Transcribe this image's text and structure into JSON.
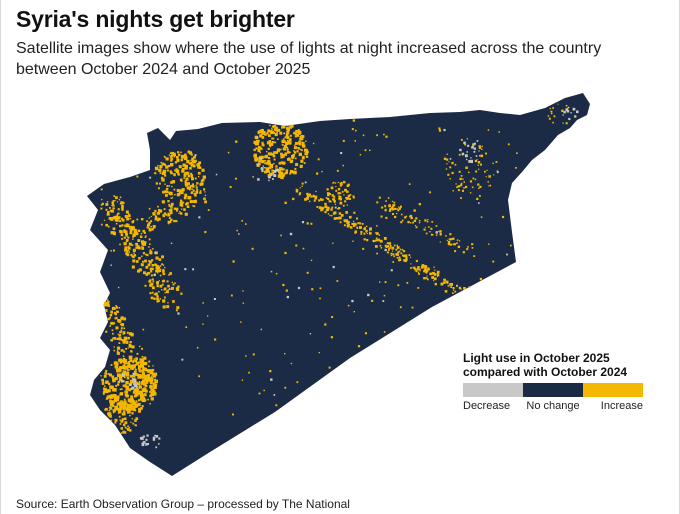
{
  "header": {
    "title": "Syria's nights get brighter",
    "subtitle": "Satellite images show where the use of lights at night increased across the country between October 2024 and October 2025"
  },
  "legend": {
    "title_line1": "Light use in October 2025",
    "title_line2": "compared with October 2024",
    "items": [
      {
        "label": "Decrease",
        "color": "#c8c8c8"
      },
      {
        "label": "No change",
        "color": "#1b2b45"
      },
      {
        "label": "Increase",
        "color": "#f5b800"
      }
    ]
  },
  "source": "Source: Earth Observation Group – processed by The National",
  "colors": {
    "background": "#ffffff",
    "land": "#1b2b45",
    "increase": "#f5b800",
    "decrease": "#c8c8c8"
  }
}
